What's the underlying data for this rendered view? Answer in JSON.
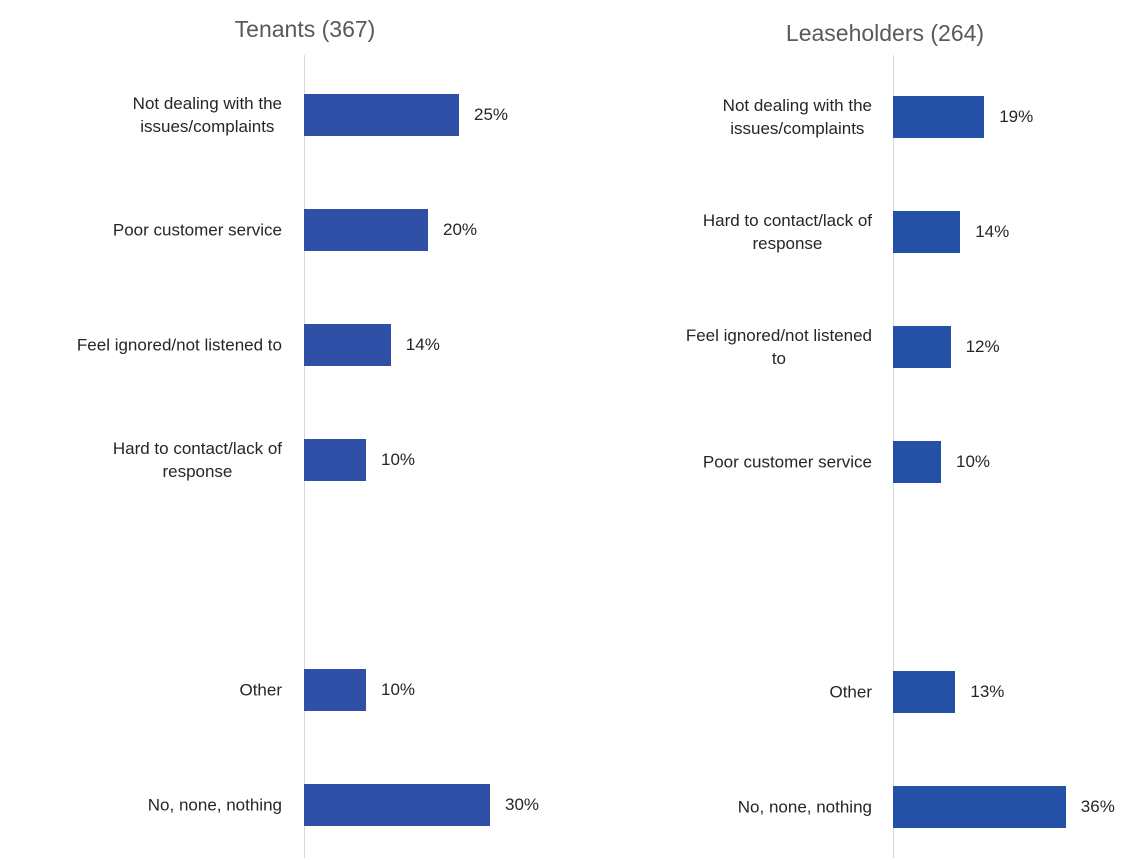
{
  "chart_data": [
    {
      "type": "bar",
      "orientation": "horizontal",
      "title": "Tenants (367)",
      "categories": [
        "Not dealing with the\nissues/complaints",
        "Poor customer service",
        "Feel ignored/not listened to",
        "Hard to contact/lack of\nresponse",
        null,
        "Other",
        "No, none, nothing"
      ],
      "values": [
        25,
        20,
        14,
        10,
        null,
        10,
        30
      ],
      "value_labels": [
        "25%",
        "20%",
        "14%",
        "10%",
        null,
        "10%",
        "30%"
      ],
      "color": "#3050a8",
      "xlim": [
        0,
        40
      ]
    },
    {
      "type": "bar",
      "orientation": "horizontal",
      "title": "Leaseholders (264)",
      "categories": [
        "Not dealing with the\nissues/complaints",
        "Hard to contact/lack of\nresponse",
        "Feel ignored/not listened\nto",
        "Poor customer service",
        null,
        "Other",
        "No, none, nothing"
      ],
      "values": [
        19,
        14,
        12,
        10,
        null,
        13,
        36
      ],
      "value_labels": [
        "19%",
        "14%",
        "12%",
        "10%",
        null,
        "13%",
        "36%"
      ],
      "color": "#2451a5",
      "xlim": [
        0,
        40
      ]
    }
  ]
}
